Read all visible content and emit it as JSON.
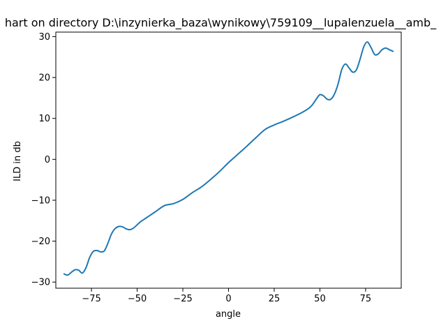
{
  "chart_data": {
    "type": "line",
    "title": "hart on directory D:\\inzynierka_baza\\wynikowy\\759109__lupalenzuela__amb_",
    "xlabel": "angle",
    "ylabel": "ILD in db",
    "xlim": [
      -94.5,
      94.5
    ],
    "ylim": [
      -31.5,
      31.1
    ],
    "xticks": [
      -75,
      -50,
      -25,
      0,
      25,
      50,
      75
    ],
    "yticks": [
      -30,
      -20,
      -10,
      0,
      10,
      20,
      30
    ],
    "xtick_labels": [
      "−75",
      "−50",
      "−25",
      "0",
      "25",
      "50",
      "75"
    ],
    "ytick_labels": [
      "−30",
      "−20",
      "−10",
      "0",
      "10",
      "20",
      "30"
    ],
    "grid": false,
    "series": [
      {
        "color": "#1f77b4",
        "x": [
          -90,
          -88,
          -86,
          -84,
          -82,
          -80,
          -78,
          -76,
          -74,
          -72,
          -70,
          -68,
          -66,
          -64,
          -62,
          -60,
          -58,
          -56,
          -54,
          -52,
          -50,
          -48,
          -46,
          -44,
          -40,
          -35,
          -30,
          -25,
          -20,
          -15,
          -10,
          -5,
          0,
          5,
          7,
          10,
          15,
          20,
          25,
          30,
          35,
          40,
          44,
          46,
          48,
          50,
          52,
          54,
          56,
          58,
          60,
          62,
          64,
          66,
          68,
          70,
          72,
          74,
          76,
          78,
          80,
          82,
          84,
          86,
          88,
          90
        ],
        "y": [
          -28.0,
          -28.3,
          -27.6,
          -27.0,
          -27.1,
          -27.8,
          -26.5,
          -24.0,
          -22.5,
          -22.3,
          -22.6,
          -22.4,
          -20.5,
          -18.2,
          -16.9,
          -16.4,
          -16.5,
          -17.0,
          -17.2,
          -16.8,
          -16.0,
          -15.2,
          -14.6,
          -14.0,
          -12.8,
          -11.3,
          -10.8,
          -9.8,
          -8.2,
          -6.8,
          -5.0,
          -3.0,
          -0.8,
          1.2,
          2.0,
          3.2,
          5.3,
          7.3,
          8.4,
          9.3,
          10.3,
          11.4,
          12.5,
          13.4,
          14.7,
          15.8,
          15.5,
          14.7,
          14.7,
          16.0,
          18.5,
          22.0,
          23.3,
          22.3,
          21.3,
          21.9,
          24.5,
          27.5,
          28.7,
          27.3,
          25.6,
          25.8,
          26.8,
          27.2,
          26.8,
          26.4
        ]
      }
    ]
  }
}
